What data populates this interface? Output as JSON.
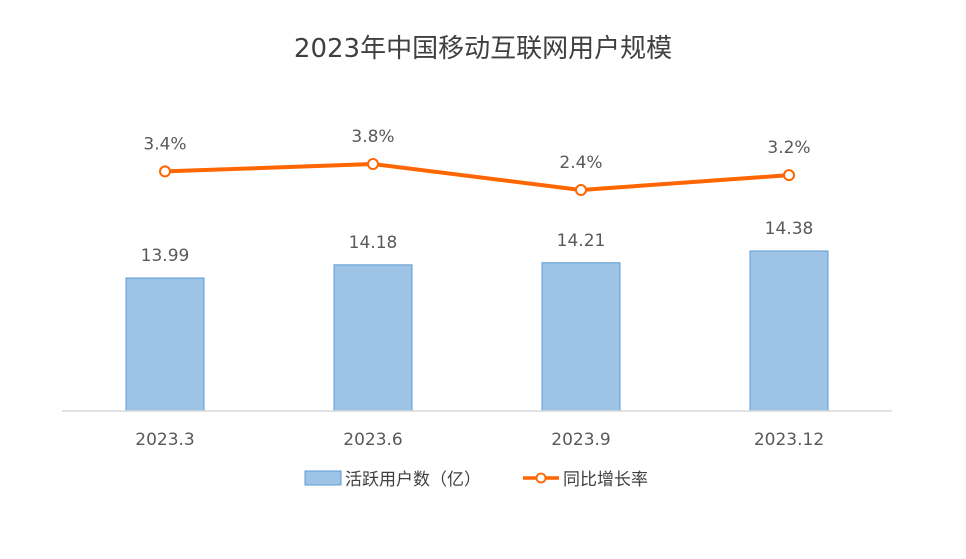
{
  "chart_data": {
    "type": "bar",
    "title": "2023年中国移动互联网用户规模",
    "categories": [
      "2023.3",
      "2023.6",
      "2023.9",
      "2023.12"
    ],
    "series": [
      {
        "name": "活跃用户数（亿）",
        "type": "bar",
        "values": [
          13.99,
          14.18,
          14.21,
          14.38
        ],
        "labels": [
          "13.99",
          "14.18",
          "14.21",
          "14.38"
        ],
        "color": "#9DC3E6",
        "border_color": "#5B9BD5"
      },
      {
        "name": "同比增长率",
        "type": "line",
        "values": [
          3.4,
          3.8,
          2.4,
          3.2
        ],
        "labels": [
          "3.4%",
          "3.8%",
          "2.4%",
          "3.2%"
        ],
        "color": "#FF6600",
        "marker": "hollow-circle"
      }
    ],
    "legend_position": "bottom",
    "grid": false
  }
}
